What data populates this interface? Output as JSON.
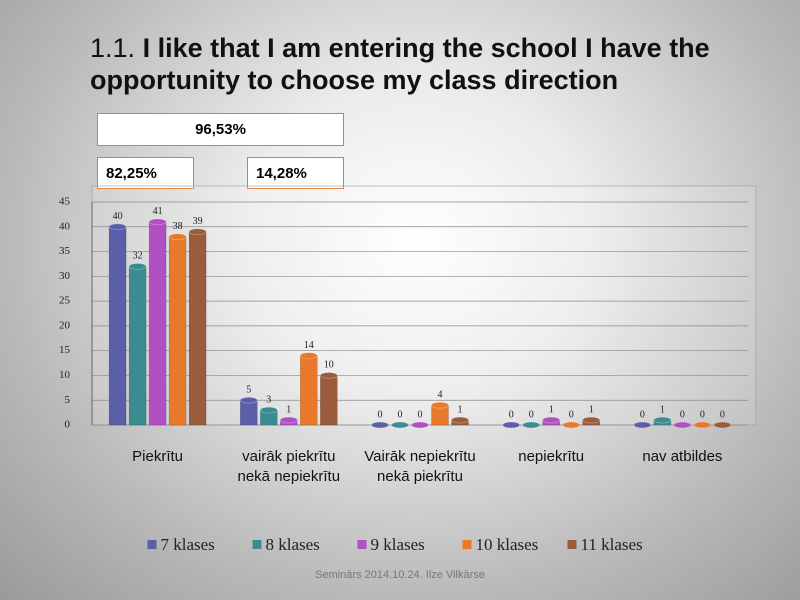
{
  "chart_data": {
    "type": "bar",
    "title_number": "1.1.",
    "title": "I like that I am entering the school I have the opportunity to choose my class direction",
    "annotations": [
      "96,53%",
      "82,25%",
      "14,28%"
    ],
    "footer": "Seminārs 2014.10.24. Ilze Vilkārse",
    "categories": [
      "Piekrītu",
      "vairāk piekrītu nekā nepiekrītu",
      "Vairāk nepiekrītu nekā piekrītu",
      "nepiekrītu",
      "nav atbildes"
    ],
    "series": [
      {
        "name": "7 klases",
        "color": "#5b5ea8",
        "values": [
          40,
          5,
          0,
          0,
          0
        ]
      },
      {
        "name": "8 klases",
        "color": "#3b8c90",
        "values": [
          32,
          3,
          0,
          0,
          1
        ]
      },
      {
        "name": "9 klases",
        "color": "#b050c2",
        "values": [
          41,
          1,
          0,
          1,
          0
        ]
      },
      {
        "name": "10 klases",
        "color": "#e8792b",
        "values": [
          38,
          14,
          4,
          0,
          0
        ]
      },
      {
        "name": "11 klases",
        "color": "#9a5c3c",
        "values": [
          39,
          10,
          1,
          1,
          0
        ]
      }
    ],
    "ylim": [
      0,
      45
    ],
    "yticks": [
      0,
      5,
      10,
      15,
      20,
      25,
      30,
      35,
      40,
      45
    ],
    "grid": true
  }
}
